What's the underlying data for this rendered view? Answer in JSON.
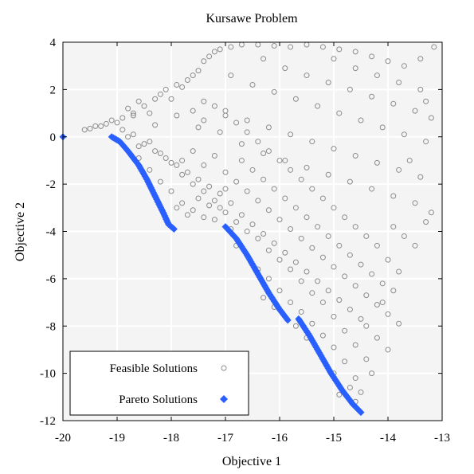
{
  "chart_data": {
    "type": "scatter",
    "title": "Kursawe Problem",
    "xlabel": "Objective 1",
    "ylabel": "Objective 2",
    "xlim": [
      -20,
      -13
    ],
    "ylim": [
      -12,
      4
    ],
    "xticks": [
      -20,
      -19,
      -18,
      -17,
      -16,
      -15,
      -14,
      -13
    ],
    "yticks": [
      4,
      2,
      0,
      -2,
      -4,
      -6,
      -8,
      -10,
      -12
    ],
    "grid": true,
    "legend": {
      "position": "bottom-left",
      "entries": [
        "Feasible Solutions",
        "Pareto Solutions"
      ]
    },
    "series": [
      {
        "name": "Feasible Solutions",
        "marker": "open-circle",
        "color": "#8c8c8c",
        "points": [
          [
            -19.6,
            0.3
          ],
          [
            -19.5,
            0.35
          ],
          [
            -19.4,
            0.45
          ],
          [
            -19.3,
            0.45
          ],
          [
            -19.2,
            0.55
          ],
          [
            -19.1,
            0.7
          ],
          [
            -19.0,
            0.6
          ],
          [
            -18.9,
            0.8
          ],
          [
            -18.8,
            1.2
          ],
          [
            -18.7,
            0.9
          ],
          [
            -18.6,
            1.5
          ],
          [
            -18.5,
            1.3
          ],
          [
            -18.4,
            1.0
          ],
          [
            -18.3,
            1.6
          ],
          [
            -18.2,
            1.8
          ],
          [
            -18.1,
            2.0
          ],
          [
            -18.0,
            1.6
          ],
          [
            -17.9,
            2.2
          ],
          [
            -17.8,
            2.1
          ],
          [
            -17.7,
            2.4
          ],
          [
            -17.6,
            2.6
          ],
          [
            -17.5,
            2.8
          ],
          [
            -17.4,
            3.2
          ],
          [
            -17.3,
            3.4
          ],
          [
            -17.2,
            3.6
          ],
          [
            -17.1,
            3.7
          ],
          [
            -16.9,
            3.8
          ],
          [
            -16.7,
            3.9
          ],
          [
            -16.4,
            3.9
          ],
          [
            -16.1,
            3.85
          ],
          [
            -15.8,
            3.8
          ],
          [
            -15.5,
            3.9
          ],
          [
            -15.2,
            3.8
          ],
          [
            -14.9,
            3.7
          ],
          [
            -14.6,
            3.6
          ],
          [
            -14.3,
            3.4
          ],
          [
            -14.0,
            3.2
          ],
          [
            -13.7,
            3.0
          ],
          [
            -13.4,
            3.3
          ],
          [
            -13.15,
            3.8
          ],
          [
            -18.9,
            0.3
          ],
          [
            -18.7,
            0.1
          ],
          [
            -18.5,
            -0.3
          ],
          [
            -18.3,
            -0.6
          ],
          [
            -18.1,
            -0.9
          ],
          [
            -17.9,
            -1.2
          ],
          [
            -17.7,
            -1.5
          ],
          [
            -17.5,
            -1.8
          ],
          [
            -17.3,
            -2.1
          ],
          [
            -17.1,
            -2.4
          ],
          [
            -18.6,
            -0.9
          ],
          [
            -18.4,
            -1.4
          ],
          [
            -18.2,
            -1.9
          ],
          [
            -18.0,
            -2.3
          ],
          [
            -17.8,
            -2.8
          ],
          [
            -17.6,
            -3.1
          ],
          [
            -17.4,
            -3.4
          ],
          [
            -17.2,
            -3.5
          ],
          [
            -17.0,
            -3.2
          ],
          [
            -16.8,
            -3.6
          ],
          [
            -16.6,
            -4.0
          ],
          [
            -16.4,
            -4.3
          ],
          [
            -16.2,
            -4.8
          ],
          [
            -16.0,
            -5.2
          ],
          [
            -15.8,
            -5.6
          ],
          [
            -15.6,
            -6.1
          ],
          [
            -15.4,
            -6.6
          ],
          [
            -15.2,
            -7.0
          ],
          [
            -15.0,
            -7.6
          ],
          [
            -14.8,
            -8.2
          ],
          [
            -14.6,
            -8.8
          ],
          [
            -14.4,
            -9.4
          ],
          [
            -14.3,
            -10.0
          ],
          [
            -14.5,
            -10.8
          ],
          [
            -14.6,
            -11.2
          ],
          [
            -14.4,
            -8.0
          ],
          [
            -14.2,
            -8.5
          ],
          [
            -14.0,
            -9.0
          ],
          [
            -14.1,
            -7.0
          ],
          [
            -13.9,
            -6.5
          ],
          [
            -16.8,
            -4.6
          ],
          [
            -16.6,
            -5.0
          ],
          [
            -16.4,
            -5.6
          ],
          [
            -16.2,
            -6.0
          ],
          [
            -16.0,
            -6.5
          ],
          [
            -15.8,
            -7.0
          ],
          [
            -15.6,
            -7.4
          ],
          [
            -15.4,
            -7.9
          ],
          [
            -15.2,
            -8.4
          ],
          [
            -15.0,
            -8.9
          ],
          [
            -14.8,
            -9.5
          ],
          [
            -14.6,
            -10.2
          ],
          [
            -14.7,
            -10.6
          ],
          [
            -14.9,
            -10.9
          ],
          [
            -15.0,
            -10.0
          ],
          [
            -15.3,
            -9.0
          ],
          [
            -15.5,
            -8.5
          ],
          [
            -15.7,
            -8.0
          ],
          [
            -16.1,
            -7.2
          ],
          [
            -16.3,
            -6.8
          ],
          [
            -18.7,
            1.0
          ],
          [
            -18.3,
            0.5
          ],
          [
            -17.9,
            0.9
          ],
          [
            -17.5,
            0.4
          ],
          [
            -17.1,
            0.2
          ],
          [
            -16.7,
            -0.3
          ],
          [
            -16.3,
            -0.7
          ],
          [
            -15.9,
            -1.0
          ],
          [
            -15.5,
            -1.3
          ],
          [
            -15.1,
            -1.6
          ],
          [
            -14.7,
            -1.9
          ],
          [
            -14.3,
            -2.2
          ],
          [
            -13.9,
            -2.5
          ],
          [
            -13.5,
            -2.8
          ],
          [
            -13.2,
            -3.2
          ],
          [
            -17.4,
            1.5
          ],
          [
            -17.0,
            1.1
          ],
          [
            -16.6,
            0.7
          ],
          [
            -16.2,
            0.4
          ],
          [
            -15.8,
            0.1
          ],
          [
            -15.4,
            -0.2
          ],
          [
            -15.0,
            -0.5
          ],
          [
            -14.6,
            -0.8
          ],
          [
            -14.2,
            -1.1
          ],
          [
            -13.8,
            -1.4
          ],
          [
            -13.4,
            -1.7
          ],
          [
            -16.9,
            2.6
          ],
          [
            -16.5,
            2.2
          ],
          [
            -16.1,
            1.9
          ],
          [
            -15.7,
            1.6
          ],
          [
            -15.3,
            1.3
          ],
          [
            -14.9,
            1.0
          ],
          [
            -14.5,
            0.7
          ],
          [
            -14.1,
            0.4
          ],
          [
            -13.7,
            0.1
          ],
          [
            -13.3,
            -0.2
          ],
          [
            -16.3,
            3.3
          ],
          [
            -15.9,
            2.9
          ],
          [
            -15.5,
            2.6
          ],
          [
            -15.1,
            2.3
          ],
          [
            -14.7,
            2.0
          ],
          [
            -14.3,
            1.7
          ],
          [
            -13.9,
            1.4
          ],
          [
            -13.5,
            1.1
          ],
          [
            -13.2,
            0.8
          ],
          [
            -15.0,
            3.3
          ],
          [
            -14.6,
            2.9
          ],
          [
            -14.2,
            2.6
          ],
          [
            -13.8,
            2.3
          ],
          [
            -13.4,
            2.0
          ],
          [
            -17.8,
            -1.0
          ],
          [
            -17.6,
            -0.6
          ],
          [
            -17.4,
            -1.2
          ],
          [
            -17.2,
            -0.8
          ],
          [
            -17.0,
            -1.5
          ],
          [
            -16.8,
            -1.9
          ],
          [
            -16.6,
            -2.3
          ],
          [
            -16.4,
            -2.7
          ],
          [
            -16.2,
            -3.1
          ],
          [
            -16.0,
            -3.5
          ],
          [
            -15.8,
            -3.9
          ],
          [
            -15.6,
            -4.3
          ],
          [
            -15.4,
            -4.7
          ],
          [
            -15.2,
            -5.1
          ],
          [
            -15.0,
            -5.5
          ],
          [
            -14.8,
            -5.9
          ],
          [
            -14.6,
            -6.3
          ],
          [
            -14.4,
            -6.7
          ],
          [
            -14.2,
            -7.1
          ],
          [
            -14.0,
            -7.5
          ],
          [
            -13.8,
            -7.9
          ],
          [
            -16.9,
            -2.8
          ],
          [
            -16.7,
            -3.3
          ],
          [
            -16.5,
            -3.7
          ],
          [
            -16.3,
            -4.1
          ],
          [
            -16.1,
            -4.5
          ],
          [
            -15.9,
            -4.9
          ],
          [
            -15.7,
            -5.3
          ],
          [
            -15.5,
            -5.7
          ],
          [
            -15.3,
            -6.1
          ],
          [
            -15.1,
            -6.5
          ],
          [
            -14.9,
            -6.9
          ],
          [
            -14.7,
            -7.3
          ],
          [
            -14.5,
            -7.7
          ],
          [
            -17.9,
            -3.0
          ],
          [
            -17.7,
            -3.3
          ],
          [
            -17.5,
            -2.6
          ],
          [
            -17.3,
            -2.9
          ],
          [
            -17.1,
            -3.0
          ],
          [
            -16.9,
            -3.9
          ],
          [
            -18.8,
            0.0
          ],
          [
            -18.6,
            -0.4
          ],
          [
            -18.4,
            -0.2
          ],
          [
            -18.2,
            -0.7
          ],
          [
            -18.0,
            -1.1
          ],
          [
            -17.8,
            -1.6
          ],
          [
            -17.6,
            -2.0
          ],
          [
            -17.4,
            -2.3
          ],
          [
            -17.2,
            -2.7
          ],
          [
            -17.0,
            -2.2
          ],
          [
            -16.7,
            -1.0
          ],
          [
            -16.5,
            -1.4
          ],
          [
            -16.3,
            -1.8
          ],
          [
            -16.1,
            -2.2
          ],
          [
            -15.9,
            -2.6
          ],
          [
            -15.7,
            -3.0
          ],
          [
            -15.5,
            -3.4
          ],
          [
            -15.3,
            -3.8
          ],
          [
            -15.1,
            -4.2
          ],
          [
            -14.9,
            -4.6
          ],
          [
            -14.7,
            -5.0
          ],
          [
            -14.5,
            -5.4
          ],
          [
            -14.3,
            -5.8
          ],
          [
            -14.1,
            -6.2
          ],
          [
            -13.9,
            -3.8
          ],
          [
            -13.7,
            -4.2
          ],
          [
            -13.5,
            -4.6
          ],
          [
            -13.3,
            -3.6
          ],
          [
            -13.6,
            -1.0
          ],
          [
            -13.3,
            1.5
          ],
          [
            -14.0,
            -5.2
          ],
          [
            -13.8,
            -5.7
          ],
          [
            -14.2,
            -4.6
          ],
          [
            -14.4,
            -4.2
          ],
          [
            -14.6,
            -3.8
          ],
          [
            -14.8,
            -3.4
          ],
          [
            -15.0,
            -3.0
          ],
          [
            -15.2,
            -2.6
          ],
          [
            -15.4,
            -2.2
          ],
          [
            -15.6,
            -1.8
          ],
          [
            -15.8,
            -1.4
          ],
          [
            -16.0,
            -1.0
          ],
          [
            -16.2,
            -0.6
          ],
          [
            -16.4,
            -0.2
          ],
          [
            -16.6,
            0.2
          ],
          [
            -16.8,
            0.6
          ],
          [
            -17.0,
            0.9
          ],
          [
            -17.2,
            1.3
          ],
          [
            -17.4,
            0.7
          ],
          [
            -17.6,
            1.1
          ]
        ]
      },
      {
        "name": "Pareto Solutions",
        "marker": "filled-diamond",
        "color": "#2a5fff",
        "segments": [
          [
            [
              -20.0,
              0.0
            ]
          ],
          [
            [
              -19.1,
              0.0
            ],
            [
              -18.95,
              -0.2
            ],
            [
              -18.8,
              -0.6
            ],
            [
              -18.6,
              -1.2
            ],
            [
              -18.45,
              -1.8
            ],
            [
              -18.3,
              -2.5
            ],
            [
              -18.15,
              -3.2
            ],
            [
              -18.05,
              -3.7
            ],
            [
              -17.95,
              -3.9
            ]
          ],
          [
            [
              -17.0,
              -3.8
            ],
            [
              -16.8,
              -4.3
            ],
            [
              -16.6,
              -5.0
            ],
            [
              -16.4,
              -5.8
            ],
            [
              -16.2,
              -6.6
            ],
            [
              -16.0,
              -7.3
            ],
            [
              -15.85,
              -7.75
            ]
          ],
          [
            [
              -15.65,
              -7.7
            ],
            [
              -15.45,
              -8.4
            ],
            [
              -15.25,
              -9.2
            ],
            [
              -15.05,
              -10.0
            ],
            [
              -14.85,
              -10.7
            ],
            [
              -14.65,
              -11.3
            ],
            [
              -14.5,
              -11.65
            ]
          ]
        ]
      }
    ]
  }
}
